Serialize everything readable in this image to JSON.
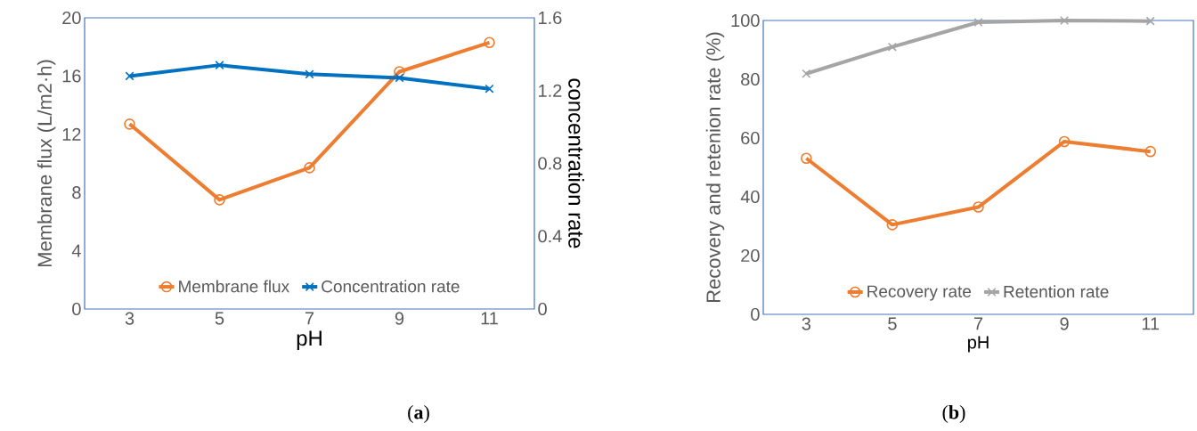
{
  "chart_data": [
    {
      "type": "line",
      "categories": [
        "3",
        "5",
        "7",
        "9",
        "11"
      ],
      "xlabel": "pH",
      "ylabel": "Membrane flux (L/m2·h)",
      "y2label": "concentration rate",
      "ylim": [
        0,
        20
      ],
      "yticks": [
        0,
        4,
        8,
        12,
        16,
        20
      ],
      "y2lim": [
        0,
        1.6
      ],
      "y2ticks": [
        0,
        0.4,
        0.8,
        1.2,
        1.6
      ],
      "legend": "bottom",
      "annotations": [
        "(**a**)"
      ],
      "series": [
        {
          "name": "Membrane flux",
          "color": "#ed7d31",
          "marker": "circle",
          "values": [
            12.7,
            7.5,
            9.7,
            16.3,
            18.3
          ]
        },
        {
          "name": "Concentration rate",
          "color": "#0070c0",
          "marker": "cross",
          "axis": "y2",
          "values": [
            1.28,
            1.34,
            1.29,
            1.27,
            1.21
          ]
        }
      ]
    },
    {
      "type": "line",
      "categories": [
        "3",
        "5",
        "7",
        "9",
        "11"
      ],
      "xlabel": "pH",
      "ylabel": "Recovery and retenion rate (%)",
      "ylim": [
        0,
        100
      ],
      "yticks": [
        0,
        20,
        40,
        60,
        80,
        100
      ],
      "legend": "bottom",
      "annotations": [
        "(**b**)"
      ],
      "series": [
        {
          "name": "Recovery rate",
          "color": "#ed7d31",
          "marker": "circle",
          "values": [
            53.1,
            30.5,
            36.5,
            58.8,
            55.4
          ]
        },
        {
          "name": "Retention rate",
          "color": "#a5a5a5",
          "marker": "cross",
          "values": [
            81.9,
            91.0,
            99.4,
            100.0,
            99.8
          ]
        }
      ]
    }
  ]
}
